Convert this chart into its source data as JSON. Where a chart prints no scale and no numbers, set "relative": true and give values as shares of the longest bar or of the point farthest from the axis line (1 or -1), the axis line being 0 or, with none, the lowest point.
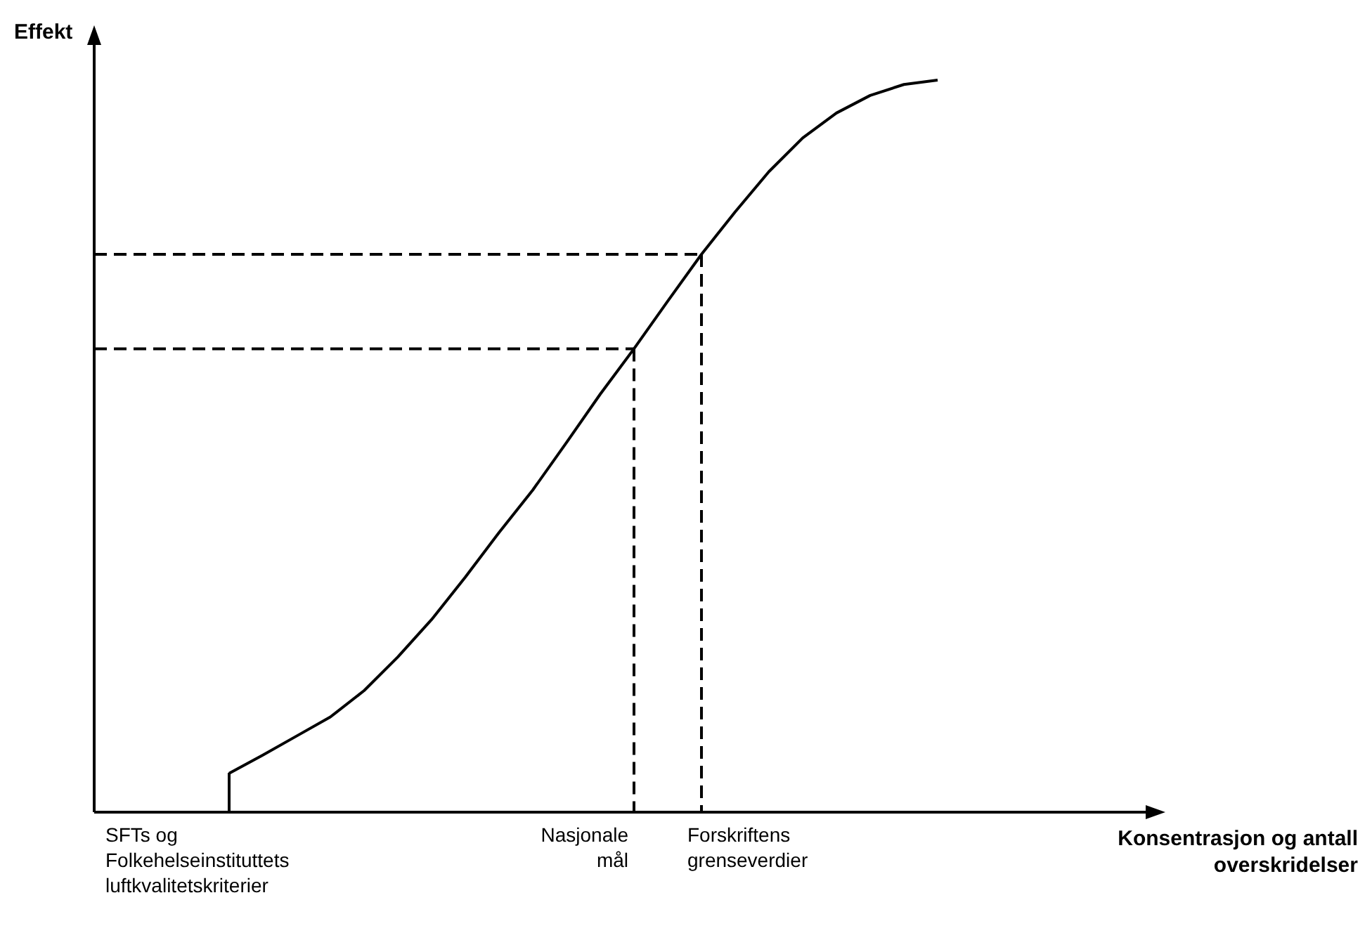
{
  "chart_data": {
    "type": "line",
    "relative": true,
    "ylabel": "Effekt",
    "xlabel": "Konsentrasjon og antall overskridelser",
    "marker": "none",
    "grid": false,
    "categories": [
      null,
      null,
      null,
      null,
      null,
      null,
      null,
      null,
      null,
      null,
      null,
      null,
      null,
      null,
      null,
      null,
      null,
      null,
      null,
      null,
      null,
      null,
      null,
      null,
      null,
      null,
      null,
      null,
      null,
      null,
      null,
      null
    ],
    "series": [
      {
        "color": "#000000",
        "values": [
          null,
          null,
          null,
          null,
          0.053,
          0.078,
          0.104,
          0.13,
          0.166,
          0.212,
          0.263,
          0.321,
          0.382,
          0.44,
          0.505,
          0.571,
          0.633,
          0.698,
          0.762,
          0.82,
          0.875,
          0.921,
          0.955,
          0.979,
          0.994,
          1,
          null,
          null,
          null,
          null,
          null,
          null
        ]
      }
    ],
    "ref_lines": [
      {
        "axis": "y",
        "value": 0.633,
        "line_style": "dashed",
        "color": "#000000"
      },
      {
        "axis": "y",
        "value": 0.762,
        "line_style": "dashed",
        "color": "#000000"
      }
    ],
    "annotations": [
      "SFTs og Folkehelseinstituttets luftkvalitetskriterier",
      "Nasjonale mål",
      "Forskriftens grenseverdier"
    ]
  }
}
